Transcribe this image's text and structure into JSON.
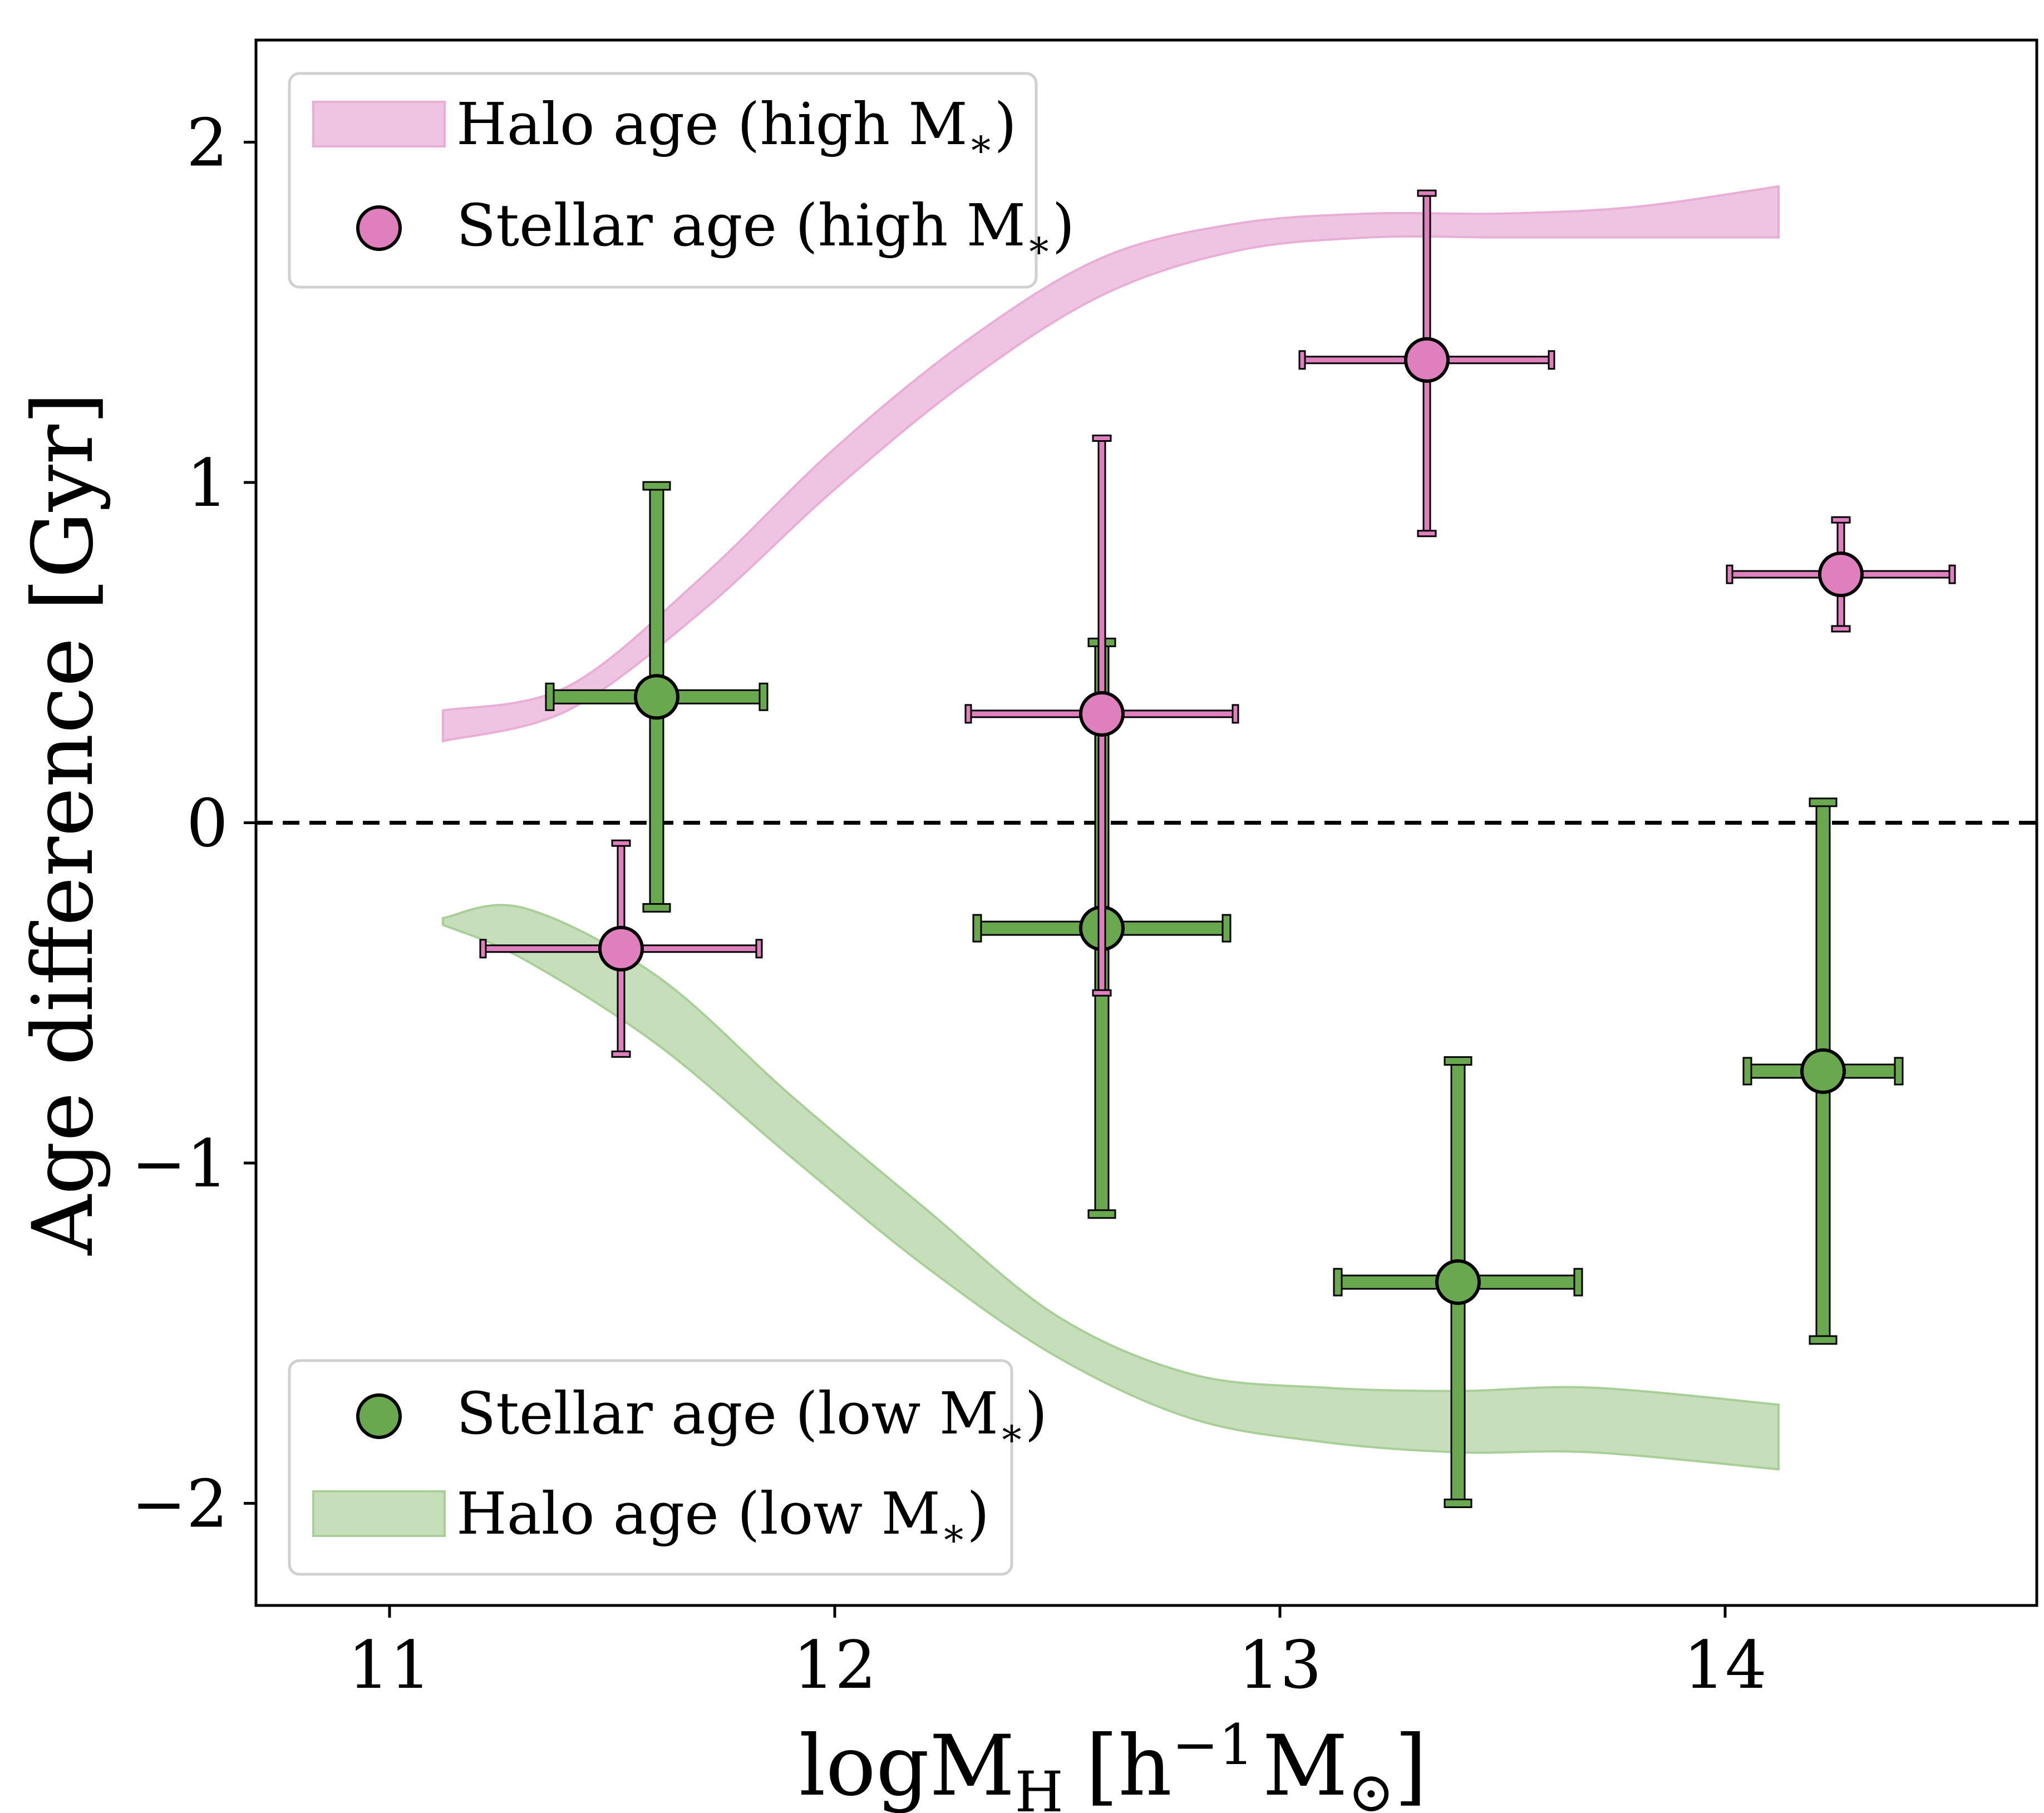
{
  "chart_data": {
    "type": "scatter",
    "xlabel_main": "logM",
    "xlabel_sub": "H",
    "xlabel_unit_prefix": "[h",
    "xlabel_unit_exp": "−1",
    "xlabel_unit_mid": "M",
    "xlabel_unit_sym": "⊙",
    "xlabel_unit_close": "]",
    "ylabel": "Age difference [Gyr]",
    "xlim": [
      10.7,
      14.7
    ],
    "ylim": [
      -2.3,
      2.3
    ],
    "x_ticks": [
      11,
      12,
      13,
      14
    ],
    "x_tick_labels": [
      "11",
      "12",
      "13",
      "14"
    ],
    "y_ticks": [
      -2,
      -1,
      0,
      1,
      2
    ],
    "y_tick_labels": [
      "−2",
      "−1",
      "0",
      "1",
      "2"
    ],
    "reference_line_y": 0,
    "colors": {
      "high": "#e07fbe",
      "low": "#6aa84f",
      "band_high": "#efc4e2",
      "band_low": "#c6deb9",
      "band_high_edge": "#e8aed5",
      "band_low_edge": "#a9cf98"
    },
    "bands": [
      {
        "name": "Halo age (high M*)",
        "x": [
          11.12,
          11.4,
          11.7,
          12.0,
          12.3,
          12.6,
          12.9,
          13.2,
          13.5,
          13.8,
          14.12
        ],
        "lower": [
          0.24,
          0.33,
          0.62,
          0.98,
          1.3,
          1.55,
          1.68,
          1.72,
          1.72,
          1.72,
          1.72
        ],
        "upper": [
          0.33,
          0.4,
          0.72,
          1.1,
          1.42,
          1.66,
          1.76,
          1.79,
          1.79,
          1.81,
          1.87
        ]
      },
      {
        "name": "Halo age (low M*)",
        "x": [
          11.12,
          11.3,
          11.6,
          11.9,
          12.2,
          12.5,
          12.8,
          13.1,
          13.4,
          13.7,
          14.12
        ],
        "lower": [
          -0.3,
          -0.4,
          -0.65,
          -0.98,
          -1.3,
          -1.57,
          -1.75,
          -1.82,
          -1.85,
          -1.85,
          -1.9
        ],
        "upper": [
          -0.28,
          -0.25,
          -0.45,
          -0.8,
          -1.13,
          -1.45,
          -1.62,
          -1.66,
          -1.67,
          -1.66,
          -1.71
        ]
      }
    ],
    "series": [
      {
        "name": "Stellar age (high M*)",
        "color_key": "high",
        "points": [
          {
            "x": 11.52,
            "y": -0.37,
            "xerr": [
              0.31,
              0.31
            ],
            "yerr": [
              0.31,
              0.31
            ]
          },
          {
            "x": 12.6,
            "y": 0.32,
            "xerr": [
              0.3,
              0.3
            ],
            "yerr": [
              0.82,
              0.81
            ]
          },
          {
            "x": 13.33,
            "y": 1.36,
            "xerr": [
              0.28,
              0.28
            ],
            "yerr": [
              0.51,
              0.49
            ]
          },
          {
            "x": 14.26,
            "y": 0.73,
            "xerr": [
              0.25,
              0.25
            ],
            "yerr": [
              0.16,
              0.16
            ]
          }
        ]
      },
      {
        "name": "Stellar age (low M*)",
        "color_key": "low",
        "points": [
          {
            "x": 11.6,
            "y": 0.37,
            "xerr": [
              0.24,
              0.24
            ],
            "yerr": [
              0.62,
              0.62
            ]
          },
          {
            "x": 12.6,
            "y": -0.31,
            "xerr": [
              0.28,
              0.28
            ],
            "yerr": [
              0.84,
              0.84
            ]
          },
          {
            "x": 13.4,
            "y": -1.35,
            "xerr": [
              0.27,
              0.27
            ],
            "yerr": [
              0.65,
              0.65
            ]
          },
          {
            "x": 14.22,
            "y": -0.73,
            "xerr": [
              0.17,
              0.17
            ],
            "yerr": [
              0.79,
              0.79
            ]
          }
        ]
      }
    ],
    "legend_top": {
      "placement": "top-left",
      "entries": [
        {
          "kind": "band",
          "color_key": "high",
          "label_main": "Halo age (high M",
          "label_sub": "∗",
          "label_end": ")"
        },
        {
          "kind": "marker",
          "color_key": "high",
          "label_main": "Stellar age (high M",
          "label_sub": "∗",
          "label_end": ")"
        }
      ]
    },
    "legend_bottom": {
      "placement": "bottom-left",
      "entries": [
        {
          "kind": "marker",
          "color_key": "low",
          "label_main": "Stellar age (low M",
          "label_sub": "∗",
          "label_end": ")"
        },
        {
          "kind": "band",
          "color_key": "low",
          "label_main": "Halo age (low M",
          "label_sub": "∗",
          "label_end": ")"
        }
      ]
    }
  }
}
